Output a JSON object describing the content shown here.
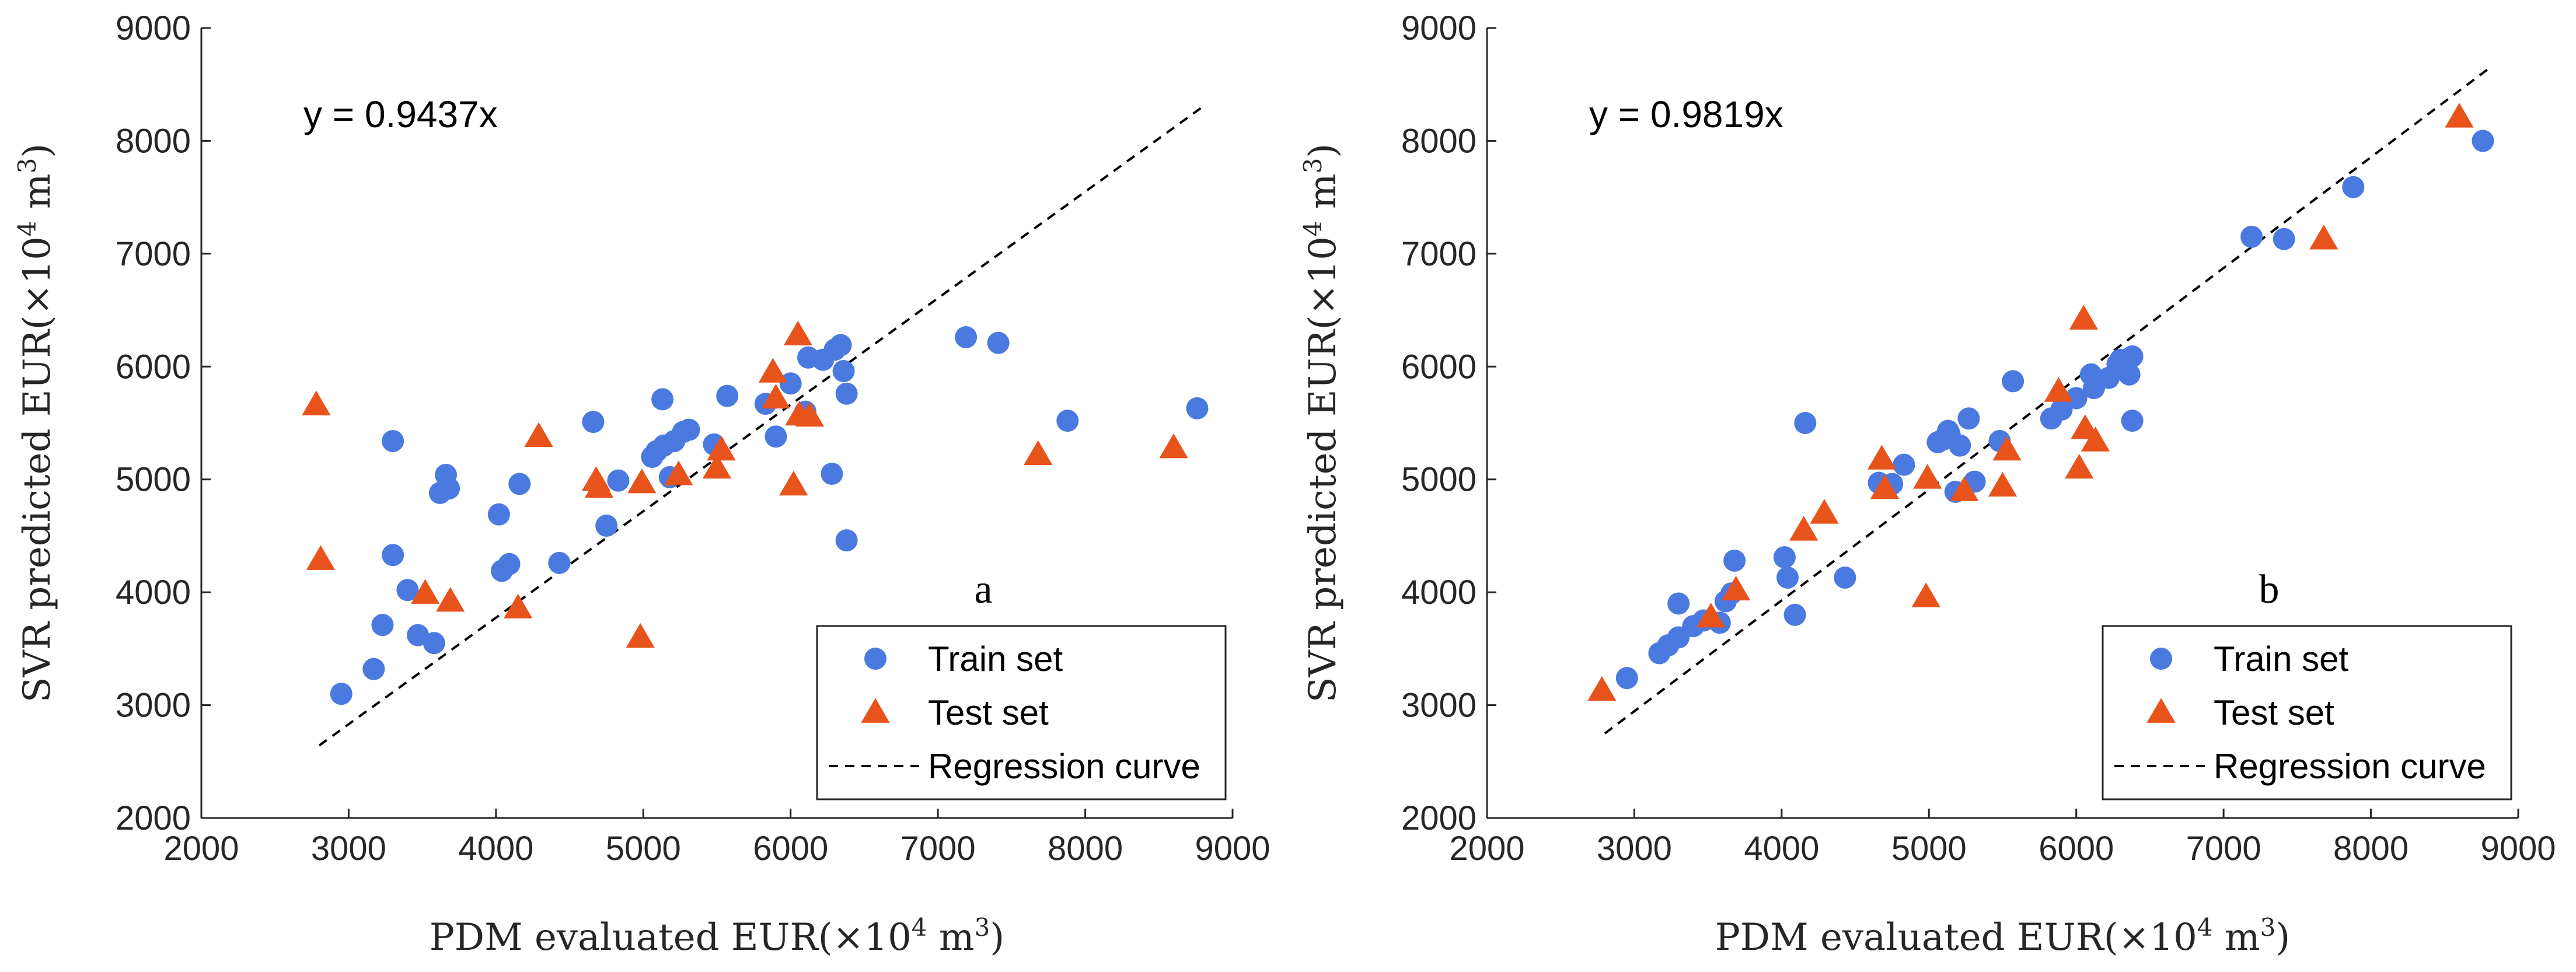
{
  "colors": {
    "train": "#4a79e0",
    "test": "#e8531c",
    "axis": "#262626",
    "regression": "#000000"
  },
  "chart_data": [
    {
      "type": "scatter",
      "panel_label": "a",
      "equation": "y = 0.9437x",
      "slope": 0.9437,
      "xlabel": "PDM evaluated EUR(×10⁴ m³)",
      "ylabel": "SVR predicted EUR(×10⁴ m³)",
      "xlim": [
        2000,
        9000
      ],
      "ylim": [
        2000,
        9000
      ],
      "xticks": [
        "2000",
        "3000",
        "4000",
        "5000",
        "6000",
        "7000",
        "8000",
        "9000"
      ],
      "yticks": [
        "2000",
        "3000",
        "4000",
        "5000",
        "6000",
        "7000",
        "8000",
        "9000"
      ],
      "regression_x_range": [
        2800,
        8800
      ],
      "legend": {
        "position": "bottom-right",
        "entries": [
          "Train set",
          "Test set",
          "Regression curve"
        ]
      },
      "series": [
        {
          "name": "Train set",
          "marker": "circle",
          "points": [
            [
              2950,
              3100
            ],
            [
              3170,
              3320
            ],
            [
              3230,
              3710
            ],
            [
              3300,
              5340
            ],
            [
              3300,
              4330
            ],
            [
              3400,
              4020
            ],
            [
              3470,
              3620
            ],
            [
              3580,
              3550
            ],
            [
              3620,
              4880
            ],
            [
              3660,
              5040
            ],
            [
              3680,
              4920
            ],
            [
              4020,
              4690
            ],
            [
              4040,
              4190
            ],
            [
              4090,
              4250
            ],
            [
              4160,
              4960
            ],
            [
              4430,
              4260
            ],
            [
              4660,
              5510
            ],
            [
              4750,
              4590
            ],
            [
              4830,
              4990
            ],
            [
              5060,
              5200
            ],
            [
              5090,
              5250
            ],
            [
              5130,
              5710
            ],
            [
              5140,
              5300
            ],
            [
              5180,
              5020
            ],
            [
              5210,
              5340
            ],
            [
              5270,
              5420
            ],
            [
              5310,
              5440
            ],
            [
              5480,
              5310
            ],
            [
              5570,
              5740
            ],
            [
              5830,
              5670
            ],
            [
              5900,
              5380
            ],
            [
              6000,
              5850
            ],
            [
              6100,
              5600
            ],
            [
              6120,
              6080
            ],
            [
              6220,
              6060
            ],
            [
              6280,
              5050
            ],
            [
              6300,
              6150
            ],
            [
              6340,
              6190
            ],
            [
              6360,
              5960
            ],
            [
              6380,
              5760
            ],
            [
              6380,
              4460
            ],
            [
              7190,
              6260
            ],
            [
              7410,
              6210
            ],
            [
              7880,
              5520
            ],
            [
              8760,
              5630
            ]
          ]
        },
        {
          "name": "Test set",
          "marker": "triangle",
          "points": [
            [
              2780,
              5660
            ],
            [
              2810,
              4290
            ],
            [
              3520,
              3990
            ],
            [
              3690,
              3920
            ],
            [
              4150,
              3860
            ],
            [
              4290,
              5380
            ],
            [
              4680,
              4990
            ],
            [
              4700,
              4930
            ],
            [
              4980,
              3600
            ],
            [
              4990,
              4970
            ],
            [
              5240,
              5040
            ],
            [
              5500,
              5100
            ],
            [
              5530,
              5260
            ],
            [
              5880,
              5950
            ],
            [
              5900,
              5720
            ],
            [
              6020,
              4950
            ],
            [
              6050,
              6280
            ],
            [
              6060,
              5570
            ],
            [
              6130,
              5560
            ],
            [
              7680,
              5220
            ],
            [
              8600,
              5280
            ]
          ]
        }
      ]
    },
    {
      "type": "scatter",
      "panel_label": "b",
      "equation": "y = 0.9819x",
      "slope": 0.9819,
      "xlabel": "PDM evaluated EUR(×10⁴ m³)",
      "ylabel": "SVR predicted EUR(×10⁴ m³)",
      "xlim": [
        2000,
        9000
      ],
      "ylim": [
        2000,
        9000
      ],
      "xticks": [
        "2000",
        "3000",
        "4000",
        "5000",
        "6000",
        "7000",
        "8000",
        "9000"
      ],
      "yticks": [
        "2000",
        "3000",
        "4000",
        "5000",
        "6000",
        "7000",
        "8000",
        "9000"
      ],
      "regression_x_range": [
        2800,
        8800
      ],
      "legend": {
        "position": "bottom-right",
        "entries": [
          "Train set",
          "Test set",
          "Regression curve"
        ]
      },
      "series": [
        {
          "name": "Train set",
          "marker": "circle",
          "points": [
            [
              2950,
              3240
            ],
            [
              3170,
              3460
            ],
            [
              3230,
              3530
            ],
            [
              3300,
              3900
            ],
            [
              3300,
              3600
            ],
            [
              3400,
              3700
            ],
            [
              3470,
              3750
            ],
            [
              3580,
              3730
            ],
            [
              3620,
              3920
            ],
            [
              3660,
              3990
            ],
            [
              3680,
              4280
            ],
            [
              4020,
              4310
            ],
            [
              4040,
              4130
            ],
            [
              4090,
              3800
            ],
            [
              4160,
              5500
            ],
            [
              4430,
              4130
            ],
            [
              4660,
              4970
            ],
            [
              4750,
              4960
            ],
            [
              4830,
              5130
            ],
            [
              5060,
              5330
            ],
            [
              5090,
              5350
            ],
            [
              5130,
              5430
            ],
            [
              5140,
              5400
            ],
            [
              5180,
              4890
            ],
            [
              5210,
              5300
            ],
            [
              5270,
              5540
            ],
            [
              5310,
              4980
            ],
            [
              5480,
              5340
            ],
            [
              5570,
              5870
            ],
            [
              5830,
              5540
            ],
            [
              5900,
              5620
            ],
            [
              6000,
              5720
            ],
            [
              6100,
              5930
            ],
            [
              6120,
              5810
            ],
            [
              6220,
              5900
            ],
            [
              6280,
              6020
            ],
            [
              6300,
              6060
            ],
            [
              6340,
              5990
            ],
            [
              6360,
              5930
            ],
            [
              6380,
              6090
            ],
            [
              6380,
              5520
            ],
            [
              7190,
              7150
            ],
            [
              7410,
              7130
            ],
            [
              7880,
              7590
            ],
            [
              8760,
              8000
            ]
          ]
        },
        {
          "name": "Test set",
          "marker": "triangle",
          "points": [
            [
              2780,
              3130
            ],
            [
              3520,
              3780
            ],
            [
              3690,
              4020
            ],
            [
              4150,
              4550
            ],
            [
              4290,
              4700
            ],
            [
              4680,
              5180
            ],
            [
              4700,
              4920
            ],
            [
              4980,
              3960
            ],
            [
              4990,
              5010
            ],
            [
              5240,
              4900
            ],
            [
              5500,
              4940
            ],
            [
              5530,
              5260
            ],
            [
              5880,
              5780
            ],
            [
              6020,
              5100
            ],
            [
              6050,
              6420
            ],
            [
              6060,
              5450
            ],
            [
              6130,
              5340
            ],
            [
              7680,
              7130
            ],
            [
              8600,
              8210
            ]
          ]
        }
      ]
    }
  ]
}
